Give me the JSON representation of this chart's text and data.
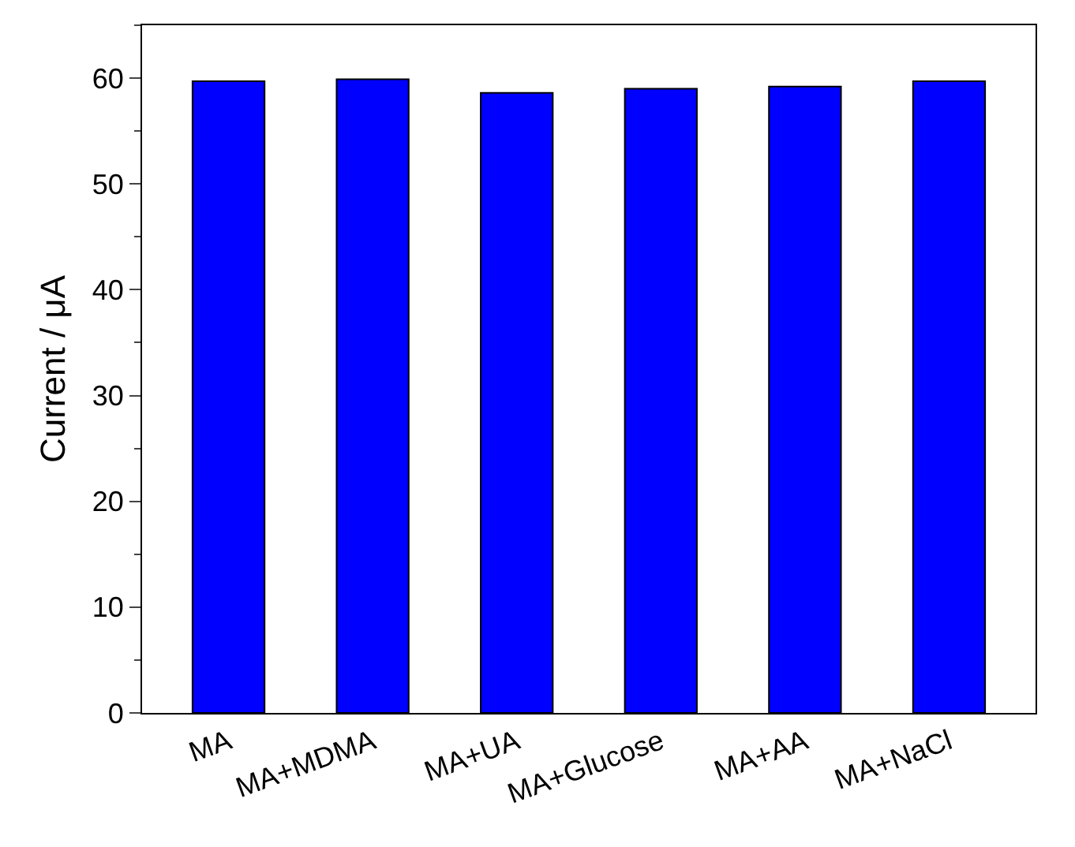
{
  "chart_data": {
    "type": "bar",
    "ylabel": "Current / μA",
    "categories": [
      "MA",
      "MA+MDMA",
      "MA+UA",
      "MA+Glucose",
      "MA+AA",
      "MA+NaCl"
    ],
    "values": [
      59.7,
      59.9,
      58.6,
      59.0,
      59.2,
      59.7
    ],
    "color": "#0000ff",
    "ylim": [
      0,
      65
    ],
    "yticks": [
      0,
      10,
      20,
      30,
      40,
      50,
      60
    ]
  }
}
